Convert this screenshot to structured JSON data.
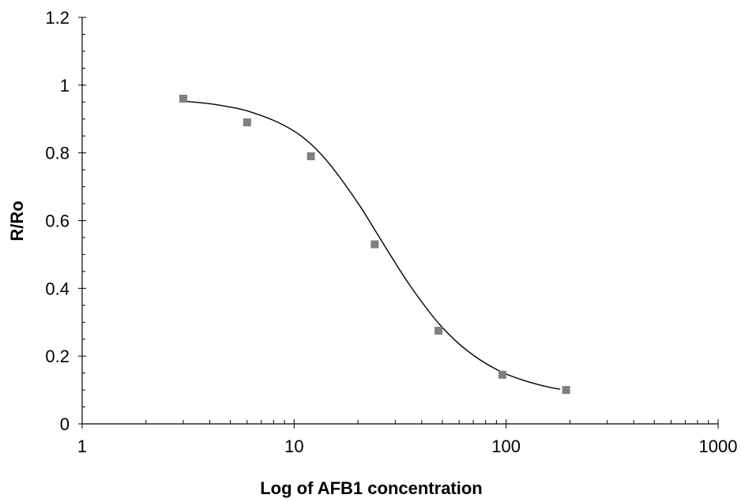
{
  "chart_data": {
    "type": "scatter",
    "title": "",
    "xlabel": "Log of AFB1 concentration",
    "ylabel": "R/Ro",
    "x_scale": "log",
    "xlim": [
      1,
      1000
    ],
    "ylim": [
      0,
      1.2
    ],
    "x_ticks": [
      1,
      10,
      100,
      1000
    ],
    "x_tick_labels": [
      "1",
      "10",
      "100",
      "1000"
    ],
    "y_ticks": [
      0,
      0.2,
      0.4,
      0.6,
      0.8,
      1,
      1.2
    ],
    "y_tick_labels": [
      "0",
      "0.2",
      "0.4",
      "0.6",
      "0.8",
      "1",
      "1.2"
    ],
    "grid": false,
    "legend": "none",
    "series": [
      {
        "kind": "points",
        "color": "#808080",
        "x": [
          3,
          6,
          12,
          24,
          48,
          96,
          192
        ],
        "y": [
          0.96,
          0.89,
          0.79,
          0.53,
          0.275,
          0.145,
          0.1
        ]
      },
      {
        "kind": "fitted-curve",
        "color": "#000000",
        "x": [
          3,
          4,
          5,
          6,
          8,
          10,
          12,
          15,
          20,
          24,
          30,
          35,
          40,
          48,
          60,
          75,
          96,
          120,
          150,
          180
        ],
        "y": [
          0.953,
          0.945,
          0.935,
          0.924,
          0.896,
          0.864,
          0.826,
          0.76,
          0.652,
          0.573,
          0.475,
          0.411,
          0.36,
          0.297,
          0.236,
          0.19,
          0.152,
          0.129,
          0.112,
          0.102
        ]
      }
    ]
  }
}
